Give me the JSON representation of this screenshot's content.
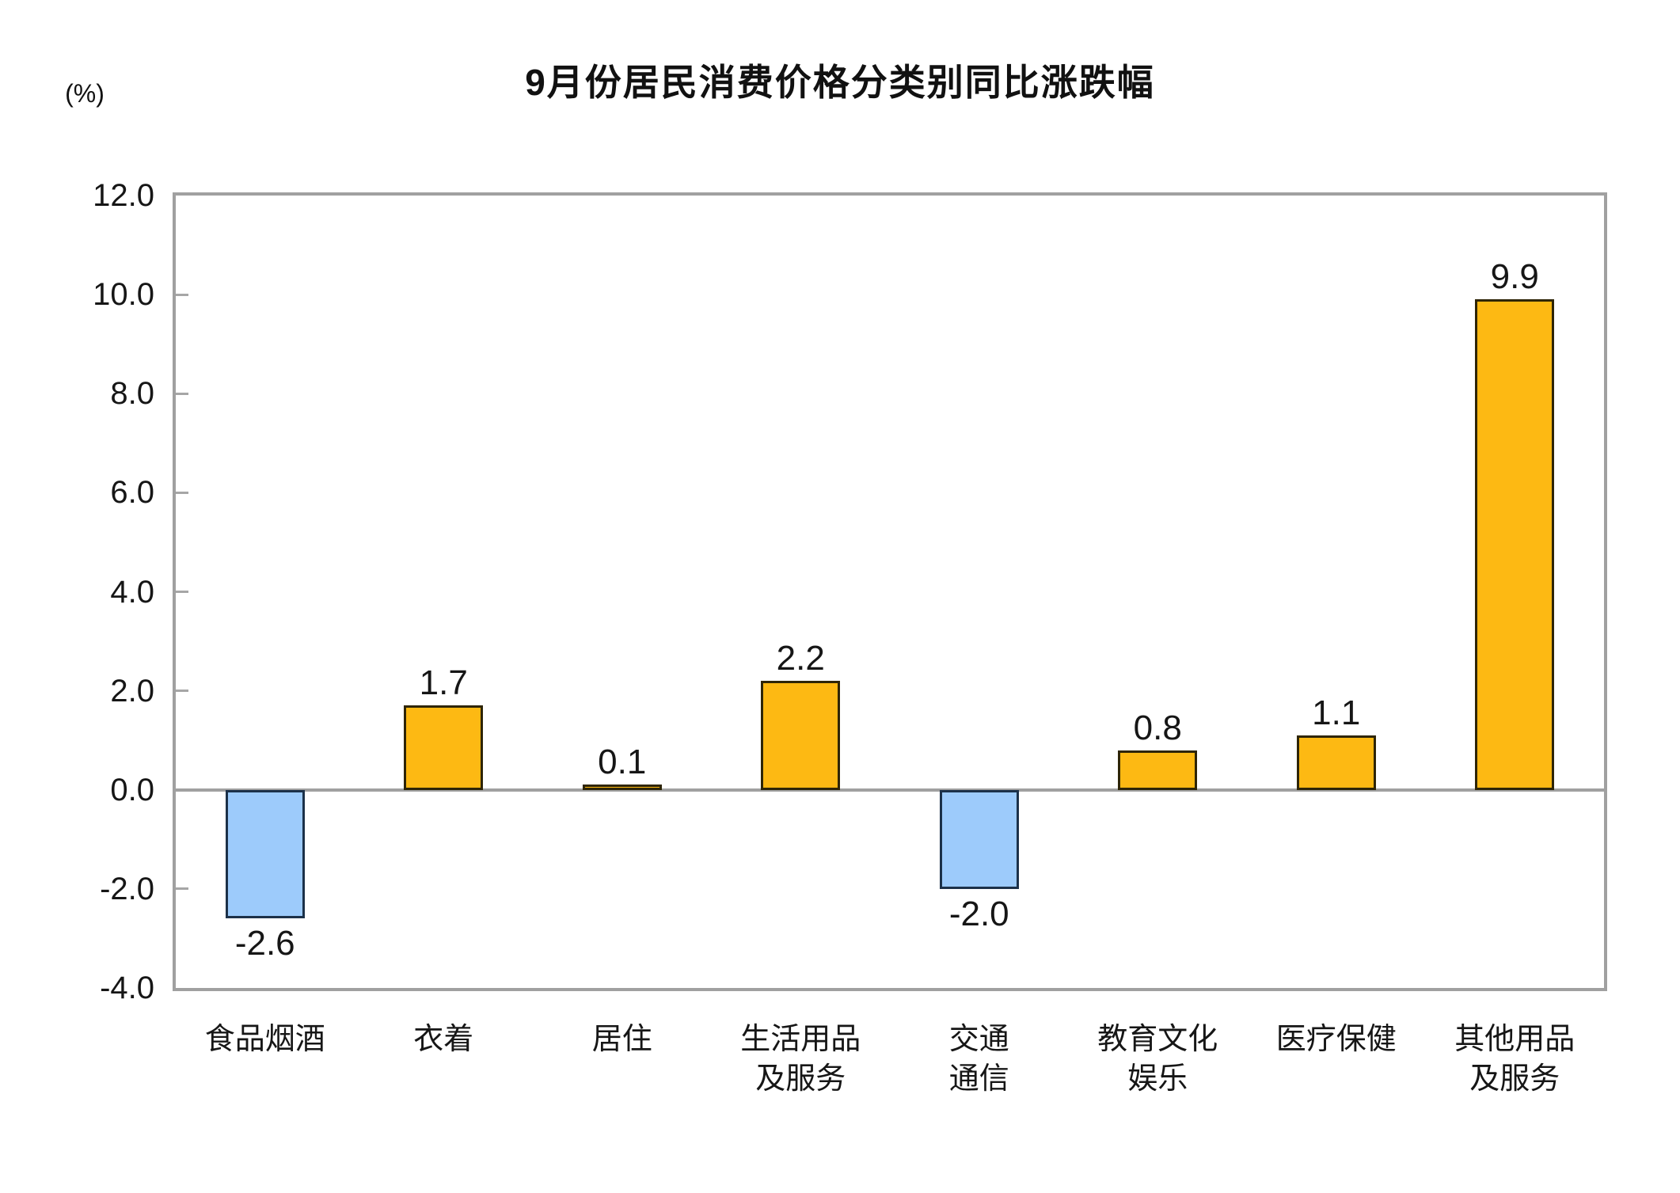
{
  "chart_data": {
    "type": "bar",
    "title": "9月份居民消费价格分类别同比涨跌幅",
    "ylabel": "(%)",
    "xlabel": "",
    "ylim": [
      -4.0,
      12.0
    ],
    "y_tick_step": 2.0,
    "y_tick_labels": [
      "12.0",
      "10.0",
      "8.0",
      "6.0",
      "4.0",
      "2.0",
      "0.0",
      "-2.0",
      "-4.0"
    ],
    "grid": false,
    "legend": false,
    "categories": [
      "食品烟酒",
      "衣着",
      "居住",
      "生活用品\n及服务",
      "交通\n通信",
      "教育文化\n娱乐",
      "医疗保健",
      "其他用品\n及服务"
    ],
    "values": [
      -2.6,
      1.7,
      0.1,
      2.2,
      -2.0,
      0.8,
      1.1,
      9.9
    ],
    "value_labels": [
      "-2.6",
      "1.7",
      "0.1",
      "2.2",
      "-2.0",
      "0.8",
      "1.1",
      "9.9"
    ],
    "colors": {
      "positive_fill": "#FDB913",
      "positive_border": "#2E2507",
      "negative_fill": "#9DCBFB",
      "negative_border": "#1C3149",
      "axis_gray": "#A0A0A0",
      "tick_gray": "#A6A6A6",
      "text": "#161616"
    }
  }
}
